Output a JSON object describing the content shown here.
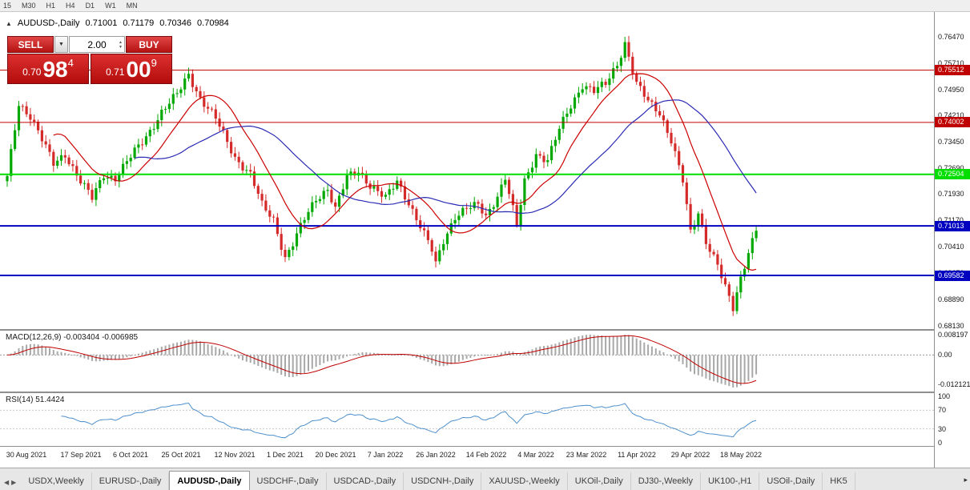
{
  "window": {
    "period_toolbar": {
      "items": [
        "15",
        "M30",
        "H1",
        "H4",
        "D1",
        "W1",
        "MN"
      ]
    },
    "chart_title": {
      "collapse_icon": "▲",
      "symbol": "AUDUSD-,Daily",
      "open": "0.71001",
      "high": "0.71179",
      "low": "0.70346",
      "close": "0.70984"
    },
    "trade_panel": {
      "sell_label": "SELL",
      "buy_label": "BUY",
      "volume": "2.00",
      "sell_price": {
        "prefix": "0.70",
        "big": "98",
        "sup": "4"
      },
      "buy_price": {
        "prefix": "0.71",
        "big": "00",
        "sup": "9"
      }
    },
    "tab_bar": {
      "scroll_left": "◀",
      "scroll_right": "▶",
      "overflow": "▸",
      "items": [
        "USDX,Weekly",
        "EURUSD-,Daily",
        "AUDUSD-,Daily",
        "USDCHF-,Daily",
        "USDCAD-,Daily",
        "USDCNH-,Daily",
        "XAUUSD-,Weekly",
        "UKOil-,Daily",
        "DJ30-,Weekly",
        "UK100-,H1",
        "USOil-,Daily",
        "HK5"
      ],
      "active_index": 2
    }
  },
  "chart_data": {
    "type": "candlestick",
    "symbol": "AUDUSD",
    "timeframe": "Daily",
    "ohlc_display": {
      "open": 0.71001,
      "high": 0.71179,
      "low": 0.70346,
      "close": 0.70984
    },
    "price_axis": {
      "ticks": [
        "0.76470",
        "0.75710",
        "0.74950",
        "0.74210",
        "0.73450",
        "0.72690",
        "0.71930",
        "0.71170",
        "0.70410",
        "0.69650",
        "0.68890",
        "0.68130"
      ],
      "top_price": 0.7719,
      "bottom_price": 0.6801
    },
    "hlines": [
      {
        "price": 0.75512,
        "label": "0.75512",
        "color": "#C00000",
        "width": 1
      },
      {
        "price": 0.74002,
        "label": "0.74002",
        "color": "#C00000",
        "width": 1
      },
      {
        "price": 0.72504,
        "label": "0.72504",
        "color": "#00DD00",
        "width": 2
      },
      {
        "price": 0.71013,
        "label": "0.71013",
        "color": "#0000C0",
        "width": 2
      },
      {
        "price": 0.69582,
        "label": "0.69582",
        "color": "#0000C0",
        "width": 2
      }
    ],
    "num_days": 195,
    "close_path_anchors": [
      [
        0,
        0.724
      ],
      [
        3,
        0.7455
      ],
      [
        6,
        0.742
      ],
      [
        9,
        0.735
      ],
      [
        12,
        0.728
      ],
      [
        15,
        0.731
      ],
      [
        19,
        0.723
      ],
      [
        22,
        0.718
      ],
      [
        25,
        0.725
      ],
      [
        28,
        0.724
      ],
      [
        32,
        0.73
      ],
      [
        36,
        0.736
      ],
      [
        40,
        0.743
      ],
      [
        44,
        0.748
      ],
      [
        47,
        0.754
      ],
      [
        50,
        0.747
      ],
      [
        54,
        0.741
      ],
      [
        59,
        0.73
      ],
      [
        63,
        0.725
      ],
      [
        66,
        0.716
      ],
      [
        69,
        0.712
      ],
      [
        72,
        0.701
      ],
      [
        74,
        0.705
      ],
      [
        77,
        0.712
      ],
      [
        80,
        0.718
      ],
      [
        83,
        0.721
      ],
      [
        85,
        0.715
      ],
      [
        88,
        0.724
      ],
      [
        91,
        0.726
      ],
      [
        94,
        0.722
      ],
      [
        98,
        0.718
      ],
      [
        101,
        0.723
      ],
      [
        104,
        0.717
      ],
      [
        107,
        0.71
      ],
      [
        110,
        0.703
      ],
      [
        111,
        0.699
      ],
      [
        113,
        0.706
      ],
      [
        116,
        0.713
      ],
      [
        119,
        0.715
      ],
      [
        122,
        0.716
      ],
      [
        124,
        0.713
      ],
      [
        127,
        0.719
      ],
      [
        129,
        0.724
      ],
      [
        132,
        0.71
      ],
      [
        134,
        0.723
      ],
      [
        137,
        0.731
      ],
      [
        140,
        0.729
      ],
      [
        143,
        0.738
      ],
      [
        146,
        0.745
      ],
      [
        149,
        0.751
      ],
      [
        152,
        0.749
      ],
      [
        155,
        0.751
      ],
      [
        158,
        0.757
      ],
      [
        160,
        0.763
      ],
      [
        163,
        0.751
      ],
      [
        166,
        0.746
      ],
      [
        169,
        0.743
      ],
      [
        172,
        0.735
      ],
      [
        175,
        0.723
      ],
      [
        177,
        0.708
      ],
      [
        179,
        0.714
      ],
      [
        181,
        0.706
      ],
      [
        184,
        0.699
      ],
      [
        186,
        0.692
      ],
      [
        188,
        0.686
      ],
      [
        190,
        0.695
      ],
      [
        192,
        0.703
      ],
      [
        194,
        0.7095
      ]
    ],
    "date_ticks": [
      [
        5,
        "30 Aug 2021"
      ],
      [
        19,
        "17 Sep 2021"
      ],
      [
        32,
        "6 Oct 2021"
      ],
      [
        45,
        "25 Oct 2021"
      ],
      [
        59,
        "12 Nov 2021"
      ],
      [
        72,
        "1 Dec 2021"
      ],
      [
        85,
        "20 Dec 2021"
      ],
      [
        98,
        "7 Jan 2022"
      ],
      [
        111,
        "26 Jan 2022"
      ],
      [
        124,
        "14 Feb 2022"
      ],
      [
        137,
        "4 Mar 2022"
      ],
      [
        150,
        "23 Mar 2022"
      ],
      [
        163,
        "11 Apr 2022"
      ],
      [
        177,
        "29 Apr 2022"
      ],
      [
        190,
        "18 May 2022"
      ]
    ],
    "moving_averages": [
      {
        "period": 13,
        "color": "#CC0000"
      },
      {
        "period": 34,
        "color": "#2B2BB4"
      }
    ],
    "macd": {
      "label": "MACD(12,26,9) -0.003404 -0.006985",
      "fast": 12,
      "slow": 26,
      "signal": 9,
      "current_macd": -0.003404,
      "current_signal": -0.006985,
      "axis_ticks": [
        "0.008197",
        "0.00",
        "-0.012121"
      ],
      "hist_color": "#A8A8A8",
      "signal_color": "#C00000"
    },
    "rsi": {
      "label": "RSI(14) 51.4424",
      "period": 14,
      "current": 51.4424,
      "axis_ticks": [
        "100",
        "70",
        "30",
        "0"
      ],
      "levels": [
        70,
        30
      ],
      "line_color": "#4D8FCC"
    },
    "candle_up_color": "#00A800",
    "candle_down_color": "#D42A2A"
  }
}
